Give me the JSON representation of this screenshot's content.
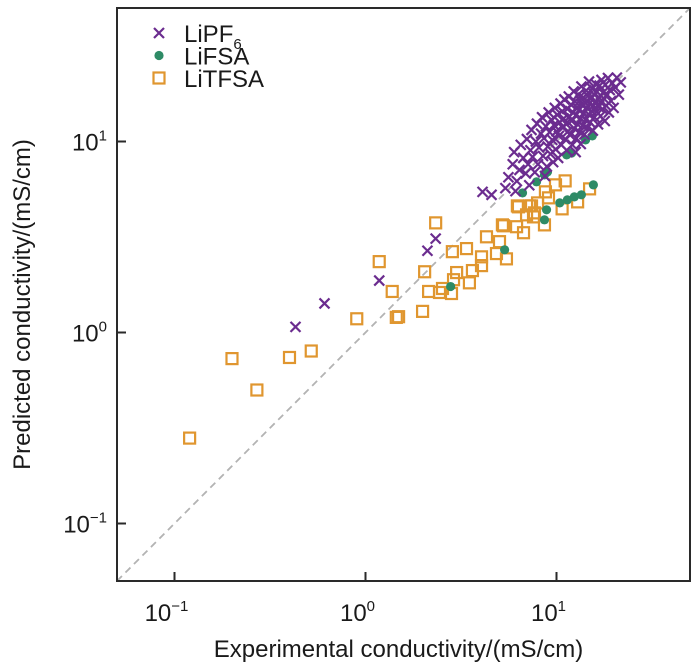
{
  "chart_data": {
    "type": "scatter",
    "title": "",
    "xlabel": "Experimental conductivity/(mS/cm)",
    "ylabel": "Predicted conductivity/(mS/cm)",
    "xscale": "log",
    "yscale": "log",
    "xlim": [
      0.05,
      50
    ],
    "ylim": [
      0.05,
      50
    ],
    "grid": false,
    "xticks": [
      {
        "value": 0.1,
        "base": "10",
        "exp": "−1"
      },
      {
        "value": 1,
        "base": "10",
        "exp": "0"
      },
      {
        "value": 10,
        "base": "10",
        "exp": "1"
      }
    ],
    "yticks": [
      {
        "value": 0.1,
        "base": "10",
        "exp": "−1"
      },
      {
        "value": 1,
        "base": "10",
        "exp": "0"
      },
      {
        "value": 10,
        "base": "10",
        "exp": "1"
      }
    ],
    "reference_line": {
      "type": "y=x",
      "style": "dashed",
      "color": "#b3b3b3"
    },
    "legend": {
      "placement": "top-left",
      "entries": [
        {
          "label": "LiPF",
          "subscript": "6",
          "marker": "x",
          "color": "#6b2c8f"
        },
        {
          "label": "LiFSA",
          "subscript": "",
          "marker": "circle",
          "color": "#2e8b66"
        },
        {
          "label": "LiTFSA",
          "subscript": "",
          "marker": "square-open",
          "color": "#e0962f"
        }
      ]
    },
    "series": [
      {
        "name": "LiTFSA",
        "marker": "square-open",
        "color": "#e0962f",
        "points": [
          [
            0.12,
            0.28
          ],
          [
            0.2,
            0.73
          ],
          [
            0.27,
            0.5
          ],
          [
            0.4,
            0.74
          ],
          [
            0.52,
            0.8
          ],
          [
            0.9,
            1.18
          ],
          [
            1.18,
            2.35
          ],
          [
            1.38,
            1.64
          ],
          [
            1.45,
            1.2
          ],
          [
            1.49,
            1.21
          ],
          [
            1.99,
            1.29
          ],
          [
            2.04,
            2.08
          ],
          [
            2.14,
            1.64
          ],
          [
            2.33,
            3.75
          ],
          [
            2.44,
            1.62
          ],
          [
            2.53,
            1.7
          ],
          [
            2.82,
            1.6
          ],
          [
            2.85,
            2.65
          ],
          [
            2.89,
            1.89
          ],
          [
            3.0,
            2.06
          ],
          [
            3.38,
            2.75
          ],
          [
            3.5,
            1.82
          ],
          [
            3.63,
            2.11
          ],
          [
            4.05,
            2.49
          ],
          [
            4.05,
            2.24
          ],
          [
            4.3,
            3.17
          ],
          [
            4.85,
            2.59
          ],
          [
            5.03,
            2.99
          ],
          [
            5.21,
            3.66
          ],
          [
            5.28,
            3.62
          ],
          [
            5.47,
            2.43
          ],
          [
            6.18,
            3.58
          ],
          [
            6.24,
            4.6
          ],
          [
            6.32,
            4.55
          ],
          [
            6.72,
            3.33
          ],
          [
            6.97,
            4.13
          ],
          [
            7.22,
            4.6
          ],
          [
            7.4,
            4.6
          ],
          [
            7.58,
            4.03
          ],
          [
            7.67,
            4.23
          ],
          [
            7.96,
            4.77
          ],
          [
            8.65,
            3.66
          ],
          [
            8.75,
            5.45
          ],
          [
            9.08,
            5.07
          ],
          [
            9.88,
            5.93
          ],
          [
            10.7,
            4.44
          ],
          [
            11.1,
            6.22
          ],
          [
            12.9,
            4.83
          ],
          [
            14.9,
            5.65
          ]
        ]
      },
      {
        "name": "LiFSA",
        "marker": "circle",
        "color": "#2e8b66",
        "points": [
          [
            2.79,
            1.74
          ],
          [
            5.35,
            2.71
          ],
          [
            6.64,
            5.38
          ],
          [
            7.86,
            6.15
          ],
          [
            8.65,
            6.69
          ],
          [
            8.97,
            6.93
          ],
          [
            8.65,
            3.89
          ],
          [
            8.87,
            4.39
          ],
          [
            10.4,
            4.77
          ],
          [
            11.3,
            8.51
          ],
          [
            11.4,
            4.95
          ],
          [
            12.0,
            8.71
          ],
          [
            12.4,
            5.13
          ],
          [
            13.5,
            5.26
          ],
          [
            14.2,
            10.2
          ],
          [
            15.4,
            10.7
          ],
          [
            15.6,
            5.93
          ]
        ]
      },
      {
        "name": "LiPF6",
        "marker": "x",
        "color": "#6b2c8f",
        "points": [
          [
            0.43,
            1.07
          ],
          [
            0.61,
            1.42
          ],
          [
            1.18,
            1.87
          ],
          [
            2.11,
            2.68
          ],
          [
            2.33,
            3.1
          ],
          [
            4.1,
            5.45
          ],
          [
            4.57,
            5.26
          ],
          [
            5.6,
            6.5
          ],
          [
            5.9,
            7.6
          ],
          [
            6.0,
            8.8
          ],
          [
            6.2,
            6.2
          ],
          [
            6.4,
            7.1
          ],
          [
            6.5,
            9.6
          ],
          [
            6.7,
            8.2
          ],
          [
            6.9,
            6.8
          ],
          [
            7.0,
            10.3
          ],
          [
            7.1,
            7.6
          ],
          [
            7.3,
            9.0
          ],
          [
            7.4,
            11.5
          ],
          [
            7.5,
            8.3
          ],
          [
            7.7,
            6.9
          ],
          [
            7.8,
            10.0
          ],
          [
            7.9,
            12.4
          ],
          [
            8.0,
            7.6
          ],
          [
            8.1,
            9.3
          ],
          [
            8.3,
            11.0
          ],
          [
            8.4,
            13.4
          ],
          [
            8.5,
            8.4
          ],
          [
            8.6,
            10.4
          ],
          [
            8.8,
            12.0
          ],
          [
            8.9,
            7.4
          ],
          [
            9.0,
            9.4
          ],
          [
            9.1,
            14.2
          ],
          [
            9.2,
            11.2
          ],
          [
            9.3,
            8.6
          ],
          [
            9.4,
            13.0
          ],
          [
            9.5,
            10.2
          ],
          [
            9.7,
            12.2
          ],
          [
            9.8,
            15.0
          ],
          [
            9.9,
            9.1
          ],
          [
            10.0,
            11.3
          ],
          [
            10.1,
            13.8
          ],
          [
            10.2,
            8.2
          ],
          [
            10.3,
            10.7
          ],
          [
            10.4,
            12.6
          ],
          [
            10.5,
            15.8
          ],
          [
            10.6,
            9.6
          ],
          [
            10.7,
            14.4
          ],
          [
            10.8,
            11.8
          ],
          [
            10.9,
            13.2
          ],
          [
            11.0,
            16.6
          ],
          [
            11.1,
            10.3
          ],
          [
            11.2,
            12.4
          ],
          [
            11.3,
            9.0
          ],
          [
            11.4,
            14.8
          ],
          [
            11.5,
            11.3
          ],
          [
            11.6,
            17.2
          ],
          [
            11.7,
            13.5
          ],
          [
            11.8,
            10.8
          ],
          [
            11.9,
            15.6
          ],
          [
            12.0,
            12.8
          ],
          [
            12.1,
            9.6
          ],
          [
            12.2,
            14.2
          ],
          [
            12.3,
            18.3
          ],
          [
            12.4,
            11.7
          ],
          [
            12.5,
            16.2
          ],
          [
            12.6,
            13.7
          ],
          [
            12.7,
            10.4
          ],
          [
            12.8,
            15.1
          ],
          [
            12.9,
            12.3
          ],
          [
            13.0,
            17.6
          ],
          [
            13.1,
            14.6
          ],
          [
            13.2,
            11.2
          ],
          [
            13.3,
            16.4
          ],
          [
            13.4,
            13.2
          ],
          [
            13.5,
            19.4
          ],
          [
            13.6,
            15.5
          ],
          [
            13.7,
            12.1
          ],
          [
            13.8,
            17.0
          ],
          [
            13.9,
            14.1
          ],
          [
            14.0,
            10.9
          ],
          [
            14.1,
            16.0
          ],
          [
            14.2,
            13.0
          ],
          [
            14.3,
            18.5
          ],
          [
            14.4,
            15.0
          ],
          [
            14.5,
            11.8
          ],
          [
            14.6,
            17.3
          ],
          [
            14.7,
            13.9
          ],
          [
            14.8,
            20.6
          ],
          [
            14.9,
            15.8
          ],
          [
            15.0,
            12.6
          ],
          [
            15.2,
            16.8
          ],
          [
            15.3,
            14.4
          ],
          [
            15.4,
            18.9
          ],
          [
            15.5,
            11.4
          ],
          [
            15.6,
            15.4
          ],
          [
            15.7,
            17.7
          ],
          [
            15.8,
            13.4
          ],
          [
            16.0,
            20.0
          ],
          [
            16.1,
            16.2
          ],
          [
            16.2,
            14.3
          ],
          [
            16.3,
            18.2
          ],
          [
            16.5,
            12.3
          ],
          [
            16.6,
            15.2
          ],
          [
            16.7,
            17.0
          ],
          [
            16.8,
            19.6
          ],
          [
            17.0,
            13.6
          ],
          [
            17.1,
            16.0
          ],
          [
            17.2,
            21.0
          ],
          [
            17.4,
            14.8
          ],
          [
            17.5,
            18.0
          ],
          [
            17.7,
            16.8
          ],
          [
            17.9,
            12.8
          ],
          [
            18.0,
            19.8
          ],
          [
            18.2,
            15.4
          ],
          [
            18.4,
            17.6
          ],
          [
            18.6,
            21.5
          ],
          [
            18.8,
            14.2
          ],
          [
            19.0,
            18.6
          ],
          [
            19.3,
            16.3
          ],
          [
            19.6,
            20.2
          ],
          [
            19.9,
            15.0
          ],
          [
            20.3,
            19.2
          ],
          [
            20.7,
            21.6
          ],
          [
            21.2,
            17.6
          ],
          [
            21.7,
            20.4
          ],
          [
            13.4,
            9.7
          ],
          [
            12.6,
            8.8
          ],
          [
            9.6,
            7.8
          ],
          [
            8.7,
            6.6
          ],
          [
            7.2,
            5.9
          ],
          [
            6.1,
            5.5
          ],
          [
            5.4,
            5.7
          ]
        ]
      }
    ]
  }
}
